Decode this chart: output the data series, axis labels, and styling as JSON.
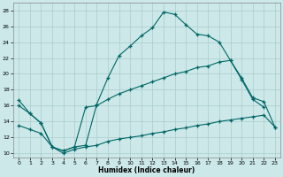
{
  "xlabel": "Humidex (Indice chaleur)",
  "background_color": "#cce8e8",
  "grid_color": "#aacccc",
  "line_color": "#006666",
  "xlim": [
    -0.5,
    23.5
  ],
  "ylim": [
    9.5,
    29.0
  ],
  "xticks": [
    0,
    1,
    2,
    3,
    4,
    5,
    6,
    7,
    8,
    9,
    10,
    11,
    12,
    13,
    14,
    15,
    16,
    17,
    18,
    19,
    20,
    21,
    22,
    23
  ],
  "yticks": [
    10,
    12,
    14,
    16,
    18,
    20,
    22,
    24,
    26,
    28
  ],
  "curve1_x": [
    0,
    1,
    2,
    3,
    4,
    5,
    6,
    7,
    8,
    9,
    10,
    11,
    12,
    13,
    14,
    15,
    16,
    17,
    18,
    19,
    20,
    21,
    22
  ],
  "curve1_y": [
    16.7,
    15.0,
    13.8,
    10.8,
    10.3,
    10.8,
    11.0,
    16.2,
    19.5,
    22.3,
    23.5,
    24.8,
    25.8,
    27.8,
    27.5,
    26.2,
    25.0,
    24.8,
    24.0,
    21.7,
    19.3,
    16.8,
    15.8
  ],
  "curve2_x": [
    0,
    1,
    2,
    3,
    4,
    5,
    6,
    7,
    8,
    9,
    10,
    11,
    12,
    13,
    14,
    15,
    16,
    17,
    18,
    19,
    20,
    21,
    22,
    23
  ],
  "curve2_y": [
    16.0,
    15.0,
    13.8,
    10.8,
    10.3,
    10.8,
    15.8,
    16.0,
    16.8,
    17.5,
    18.0,
    18.5,
    19.0,
    19.5,
    20.0,
    20.3,
    20.8,
    21.0,
    21.5,
    21.7,
    19.5,
    17.0,
    16.5,
    13.3
  ],
  "curve3_x": [
    0,
    1,
    2,
    3,
    4,
    5,
    6,
    7,
    8,
    9,
    10,
    11,
    12,
    13,
    14,
    15,
    16,
    17,
    18,
    19,
    20,
    21,
    22,
    23
  ],
  "curve3_y": [
    13.5,
    13.0,
    12.5,
    10.8,
    10.0,
    10.5,
    10.8,
    11.0,
    11.5,
    11.8,
    12.0,
    12.2,
    12.5,
    12.7,
    13.0,
    13.2,
    13.5,
    13.7,
    14.0,
    14.2,
    14.4,
    14.6,
    14.8,
    13.3
  ]
}
